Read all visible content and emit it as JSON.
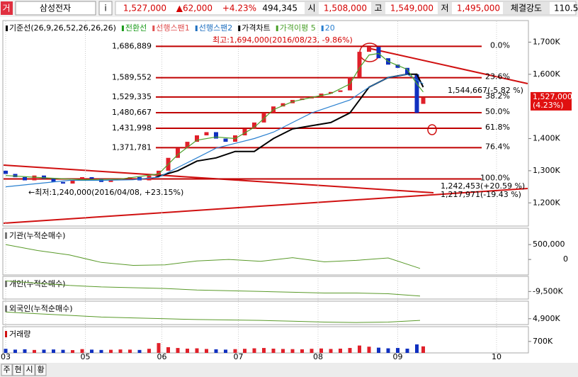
{
  "header": {
    "items": [
      "거",
      "삼성전자",
      "i",
      "1,527,000",
      "▲62,000",
      "+4.23%",
      "494,345",
      "시",
      "1,508,000",
      "고",
      "1,549,000",
      "저",
      "1,495,000",
      "체결강도",
      "110.5"
    ]
  },
  "legend": [
    {
      "text": "기준선(26,9,26,52,26,26,26)",
      "color": "#000000"
    },
    {
      "text": "전환선",
      "color": "#1a9a1a"
    },
    {
      "text": "선행스팬1",
      "color": "#e05050"
    },
    {
      "text": "선행스팬2",
      "color": "#2070c0"
    },
    {
      "text": "가격차트",
      "color": "#000000"
    },
    {
      "text": "가격이평 5",
      "color": "#4aa02a"
    },
    {
      "text": "20",
      "color": "#2a80d0"
    }
  ],
  "chart_data": {
    "type": "candlestick",
    "xlim": [
      0,
      164
    ],
    "xticks": [
      {
        "value": 0,
        "label": "03"
      },
      {
        "value": 25,
        "label": "05"
      },
      {
        "value": 49,
        "label": "06"
      },
      {
        "value": 73,
        "label": "07"
      },
      {
        "value": 98,
        "label": "08"
      },
      {
        "value": 123,
        "label": "09"
      },
      {
        "value": 154,
        "label": "10"
      }
    ],
    "ylim": [
      1130000,
      1765000
    ],
    "yticks": [
      {
        "value": 1700000,
        "label": "1,700K"
      },
      {
        "value": 1600000,
        "label": "1,600K"
      },
      {
        "value": 1400000,
        "label": "1,400K"
      },
      {
        "value": 1300000,
        "label": "1,300K"
      },
      {
        "value": 1200000,
        "label": "1,200K"
      }
    ],
    "current_price": {
      "value": 1527000,
      "label": "1,527,000",
      "change": "(4.23%)"
    },
    "x": [
      0,
      3,
      6,
      9,
      12,
      15,
      18,
      21,
      24,
      27,
      30,
      33,
      36,
      39,
      42,
      45,
      48,
      51,
      54,
      57,
      60,
      63,
      66,
      69,
      72,
      75,
      78,
      81,
      84,
      87,
      90,
      93,
      96,
      99,
      102,
      105,
      108,
      111,
      114,
      117,
      120,
      123,
      126,
      129,
      131
    ],
    "open": [
      1300000,
      1290000,
      1280000,
      1270000,
      1285000,
      1275000,
      1265000,
      1260000,
      1270000,
      1280000,
      1275000,
      1265000,
      1270000,
      1275000,
      1280000,
      1270000,
      1285000,
      1300000,
      1340000,
      1370000,
      1390000,
      1410000,
      1420000,
      1400000,
      1390000,
      1410000,
      1430000,
      1450000,
      1480000,
      1500000,
      1510000,
      1520000,
      1525000,
      1530000,
      1540000,
      1545000,
      1550000,
      1590000,
      1670000,
      1685000,
      1650000,
      1630000,
      1620000,
      1600000,
      1508000
    ],
    "close": [
      1290000,
      1280000,
      1270000,
      1285000,
      1275000,
      1265000,
      1260000,
      1270000,
      1280000,
      1275000,
      1265000,
      1270000,
      1275000,
      1280000,
      1270000,
      1285000,
      1300000,
      1340000,
      1370000,
      1390000,
      1410000,
      1420000,
      1400000,
      1390000,
      1410000,
      1430000,
      1450000,
      1480000,
      1500000,
      1510000,
      1520000,
      1525000,
      1530000,
      1540000,
      1545000,
      1550000,
      1590000,
      1670000,
      1685000,
      1650000,
      1630000,
      1620000,
      1600000,
      1480000,
      1527000
    ],
    "up_color": "#e0202a",
    "down_color": "#1030c0",
    "lines": [
      {
        "color": "#000000",
        "x": [
          47,
          54,
          60,
          66,
          72,
          78,
          84,
          90,
          96,
          102,
          108,
          114,
          120,
          126,
          129,
          131
        ],
        "values": [
          1280000,
          1300000,
          1330000,
          1340000,
          1360000,
          1360000,
          1400000,
          1430000,
          1440000,
          1450000,
          1480000,
          1560000,
          1590000,
          1600000,
          1600000,
          1560000
        ]
      },
      {
        "color": "#2a80d0",
        "x": [
          0,
          10,
          20,
          30,
          40,
          48,
          54,
          60,
          66,
          72,
          78,
          84,
          90,
          96,
          102,
          108,
          114,
          120,
          126,
          131
        ],
        "values": [
          1250000,
          1260000,
          1270000,
          1270000,
          1272000,
          1280000,
          1310000,
          1340000,
          1370000,
          1385000,
          1400000,
          1420000,
          1450000,
          1480000,
          1500000,
          1520000,
          1560000,
          1590000,
          1600000,
          1570000
        ]
      },
      {
        "color": "#4aa02a",
        "x": [
          0,
          12,
          24,
          36,
          48,
          54,
          60,
          66,
          72,
          78,
          84,
          90,
          96,
          102,
          108,
          111,
          114,
          117,
          120,
          126,
          129,
          131
        ],
        "values": [
          1285000,
          1278000,
          1272000,
          1274000,
          1290000,
          1350000,
          1395000,
          1405000,
          1400000,
          1435000,
          1490000,
          1515000,
          1528000,
          1540000,
          1570000,
          1620000,
          1660000,
          1665000,
          1640000,
          1615000,
          1570000,
          1545000
        ]
      }
    ],
    "fibonacci": [
      {
        "value": 1686889,
        "label": "1,686,889",
        "pct": "0.0%"
      },
      {
        "value": 1589552,
        "label": "1,589,552",
        "pct": "23.6%"
      },
      {
        "value": 1529335,
        "label": "1,529,335",
        "pct": "38.2%"
      },
      {
        "value": 1480667,
        "label": "1,480,667",
        "pct": "50.0%"
      },
      {
        "value": 1431998,
        "label": "1,431,998",
        "pct": "61.8%"
      },
      {
        "value": 1371781,
        "label": "1,371,781",
        "pct": "76.4%"
      },
      {
        "value": 1274444,
        "pct": "100.0%"
      }
    ],
    "fib_color": "#c00000",
    "annotations": [
      "최고:1,694,000(2016/08/23, -9.86%)",
      "←최저:1,240,000(2016/04/08, +23.15%)",
      "1,544,667(-5.82 %)",
      "1,242,453(+20.59 %)",
      "1,217,971(-19.43 %)"
    ]
  },
  "panels": [
    {
      "label": "기관(누적순매수)",
      "type": "line",
      "color": "#5a9a2a",
      "ylim": [
        -520000,
        1050000
      ],
      "yticks": [
        {
          "value": 500000,
          "label": "500,000"
        },
        0
      ],
      "x": [
        0,
        10,
        20,
        30,
        40,
        50,
        60,
        70,
        80,
        90,
        100,
        110,
        120,
        130
      ],
      "values": [
        500000,
        300000,
        150000,
        -100000,
        -200000,
        -180000,
        -50000,
        0,
        -60000,
        60000,
        -80000,
        -30000,
        50000,
        -300000
      ]
    },
    {
      "label": "개인(누적순매수)",
      "type": "line",
      "color": "#5a9a2a",
      "ylim": [
        -10500000,
        -7500000
      ],
      "yticks": [
        {
          "value": -9500000,
          "label": "-9,500K"
        }
      ],
      "x": [
        0,
        10,
        20,
        30,
        40,
        50,
        60,
        70,
        80,
        90,
        100,
        110,
        120,
        130
      ],
      "values": [
        -8100000,
        -8400000,
        -8700000,
        -8900000,
        -9000000,
        -9100000,
        -9300000,
        -9400000,
        -9500000,
        -9600000,
        -9700000,
        -9700000,
        -9800000,
        -10100000
      ]
    },
    {
      "label": "외국인(누적순매수)",
      "type": "line",
      "color": "#5a9a2a",
      "ylim": [
        4200000,
        7000000
      ],
      "yticks": [
        {
          "value": 4900000,
          "label": "4,900K"
        }
      ],
      "x": [
        0,
        10,
        20,
        30,
        40,
        50,
        60,
        70,
        80,
        90,
        100,
        110,
        120,
        130
      ],
      "values": [
        5700000,
        5500000,
        5300000,
        5100000,
        5000000,
        4900000,
        4800000,
        4750000,
        4700000,
        4600000,
        4500000,
        4450000,
        4500000,
        4700000
      ]
    },
    {
      "label": "거래량",
      "type": "bar",
      "ylim": [
        0,
        1600000
      ],
      "yticks": [
        {
          "value": 700000,
          "label": "700K"
        }
      ],
      "x": [
        0,
        3,
        6,
        9,
        12,
        15,
        18,
        21,
        24,
        27,
        30,
        33,
        36,
        39,
        42,
        45,
        48,
        51,
        54,
        57,
        60,
        63,
        66,
        69,
        72,
        75,
        78,
        81,
        84,
        87,
        90,
        93,
        96,
        99,
        102,
        105,
        108,
        111,
        114,
        117,
        120,
        123,
        126,
        129,
        131
      ],
      "values": [
        250000,
        200000,
        220000,
        180000,
        200000,
        210000,
        190000,
        170000,
        230000,
        200000,
        180000,
        190000,
        210000,
        200000,
        180000,
        250000,
        600000,
        350000,
        300000,
        260000,
        280000,
        240000,
        220000,
        200000,
        230000,
        250000,
        280000,
        300000,
        260000,
        240000,
        230000,
        220000,
        250000,
        270000,
        240000,
        260000,
        300000,
        450000,
        380000,
        320000,
        280000,
        300000,
        260000,
        520000,
        400000
      ]
    }
  ],
  "buttons": [
    "주",
    "현",
    "시",
    "황"
  ]
}
